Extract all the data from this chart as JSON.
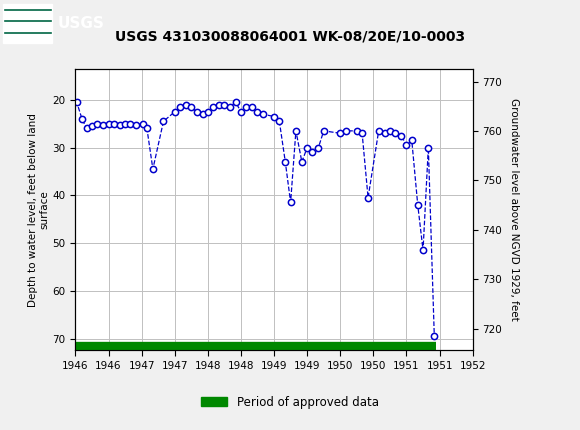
{
  "title": "USGS 431030088064001 WK-08/20E/10-0003",
  "legend_label": "Period of approved data",
  "ylabel_left": "Depth to water level, feet below land\nsurface",
  "ylabel_right": "Groundwater level above NGVD 1929, feet",
  "xlim": [
    1946.0,
    1952.0
  ],
  "ylim_left": [
    72.5,
    13.5
  ],
  "ylim_right": [
    715.6,
    772.6
  ],
  "xticks": [
    1946,
    1946.5,
    1947,
    1947.5,
    1948,
    1948.5,
    1949,
    1949.5,
    1950,
    1950.5,
    1951,
    1951.5,
    1952
  ],
  "xticklabels": [
    "1946",
    "1946",
    "1947",
    "1947",
    "1948",
    "1948",
    "1949",
    "1949",
    "1950",
    "1950",
    "1951",
    "1951",
    "1952"
  ],
  "yticks_left": [
    20,
    30,
    40,
    50,
    60,
    70
  ],
  "yticks_right": [
    720,
    730,
    740,
    750,
    760,
    770
  ],
  "header_color": "#006644",
  "bg_color": "#f0f0f0",
  "plot_bg": "#ffffff",
  "line_color": "#0000cc",
  "marker_color": "#0000cc",
  "approved_bar_color": "#008800",
  "data_x": [
    1945.92,
    1946.02,
    1946.1,
    1946.17,
    1946.25,
    1946.33,
    1946.42,
    1946.5,
    1946.58,
    1946.67,
    1946.75,
    1946.83,
    1946.92,
    1947.02,
    1947.08,
    1947.17,
    1947.33,
    1947.5,
    1947.58,
    1947.67,
    1947.75,
    1947.83,
    1947.92,
    1948.0,
    1948.08,
    1948.17,
    1948.25,
    1948.33,
    1948.42,
    1948.5,
    1948.58,
    1948.67,
    1948.75,
    1948.83,
    1949.0,
    1949.08,
    1949.17,
    1949.25,
    1949.33,
    1949.42,
    1949.5,
    1949.58,
    1949.67,
    1949.75,
    1950.0,
    1950.08,
    1950.25,
    1950.33,
    1950.42,
    1950.58,
    1950.67,
    1950.75,
    1950.83,
    1950.92,
    1951.0,
    1951.08,
    1951.17,
    1951.25,
    1951.33,
    1951.42
  ],
  "data_y": [
    19.5,
    20.5,
    24.0,
    26.0,
    25.5,
    25.0,
    25.2,
    25.0,
    25.0,
    25.2,
    25.0,
    25.0,
    25.2,
    25.0,
    26.0,
    34.5,
    24.5,
    22.5,
    21.5,
    21.0,
    21.5,
    22.5,
    23.0,
    22.5,
    21.5,
    21.0,
    21.0,
    21.5,
    20.5,
    22.5,
    21.5,
    21.5,
    22.5,
    23.0,
    23.5,
    24.5,
    33.0,
    41.5,
    26.5,
    33.0,
    30.0,
    31.0,
    30.0,
    26.5,
    27.0,
    26.5,
    26.5,
    27.0,
    40.5,
    26.5,
    27.0,
    26.5,
    27.0,
    27.5,
    29.5,
    28.5,
    42.0,
    51.5,
    30.0,
    69.5
  ],
  "approved_bar_depth": 71.5,
  "approved_bar_start": 1945.88,
  "approved_bar_end": 1951.45
}
